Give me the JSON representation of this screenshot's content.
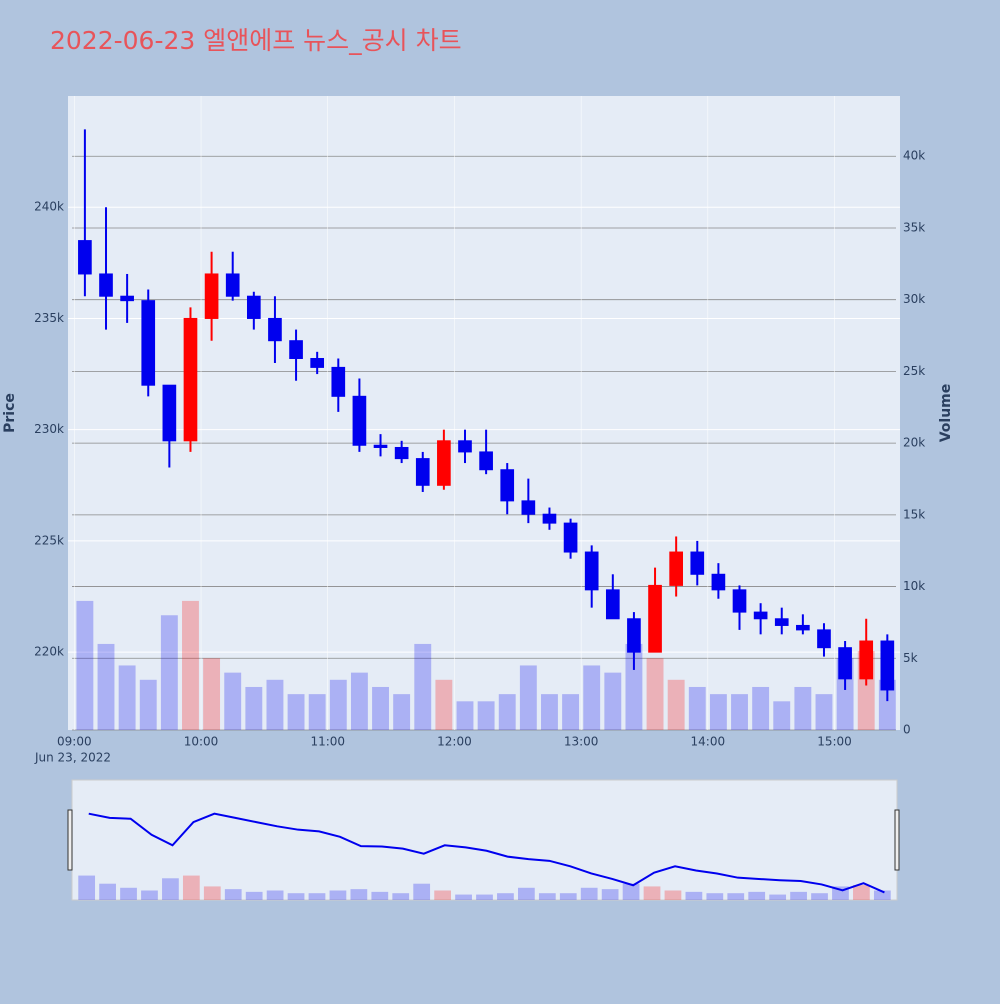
{
  "chart_data": {
    "type": "candlestick",
    "title": "2022-06-23 엘앤에프 뉴스_공시 차트",
    "title_color": "#e8545a",
    "y_title": "Price",
    "y2_title": "Volume",
    "x_date_label": "Jun 23, 2022",
    "up_color": "#ff0000",
    "down_color": "#0000ee",
    "x": [
      "2022-06-23 09:00",
      "2022-06-23 09:10",
      "2022-06-23 09:20",
      "2022-06-23 09:30",
      "2022-06-23 09:40",
      "2022-06-23 09:50",
      "2022-06-23 10:00",
      "2022-06-23 10:10",
      "2022-06-23 10:20",
      "2022-06-23 10:30",
      "2022-06-23 10:40",
      "2022-06-23 10:50",
      "2022-06-23 11:00",
      "2022-06-23 11:10",
      "2022-06-23 11:20",
      "2022-06-23 11:30",
      "2022-06-23 11:40",
      "2022-06-23 11:50",
      "2022-06-23 12:00",
      "2022-06-23 12:10",
      "2022-06-23 12:20",
      "2022-06-23 12:30",
      "2022-06-23 12:40",
      "2022-06-23 12:50",
      "2022-06-23 13:00",
      "2022-06-23 13:10",
      "2022-06-23 13:20",
      "2022-06-23 13:30",
      "2022-06-23 13:40",
      "2022-06-23 13:50",
      "2022-06-23 14:00",
      "2022-06-23 14:10",
      "2022-06-23 14:20",
      "2022-06-23 14:30",
      "2022-06-23 14:40",
      "2022-06-23 14:50",
      "2022-06-23 15:00",
      "2022-06-23 15:10",
      "2022-06-23 15:20"
    ],
    "open": [
      238500,
      237000,
      236000,
      235800,
      232000,
      229500,
      235000,
      237000,
      236000,
      235000,
      234000,
      233200,
      232800,
      231500,
      229300,
      229200,
      228700,
      227500,
      229500,
      229000,
      228200,
      226800,
      226200,
      225800,
      224500,
      222800,
      221500,
      220000,
      223000,
      224500,
      223500,
      222800,
      221800,
      221500,
      221200,
      221000,
      220200,
      218800,
      220500
    ],
    "high": [
      243500,
      240000,
      237000,
      236300,
      232000,
      235500,
      238000,
      238000,
      236200,
      236000,
      234500,
      233500,
      233200,
      232300,
      229800,
      229500,
      229000,
      230000,
      230000,
      230000,
      228500,
      227800,
      226500,
      226000,
      224800,
      223500,
      221800,
      223800,
      225200,
      225000,
      224000,
      223000,
      222200,
      222000,
      221700,
      221300,
      220500,
      221500,
      220800
    ],
    "low": [
      236000,
      234500,
      234800,
      231500,
      228300,
      229000,
      234000,
      235800,
      234500,
      233000,
      232200,
      232500,
      230800,
      229000,
      228800,
      228500,
      227200,
      227300,
      228500,
      228000,
      226200,
      225800,
      225500,
      224200,
      222000,
      221500,
      219200,
      220000,
      222500,
      223000,
      222400,
      221000,
      220800,
      220800,
      220800,
      219800,
      218300,
      218500,
      217800
    ],
    "close": [
      237000,
      236000,
      235800,
      232000,
      229500,
      235000,
      237000,
      236000,
      235000,
      234000,
      233200,
      232800,
      231500,
      229300,
      229200,
      228700,
      227500,
      229500,
      229000,
      228200,
      226800,
      226200,
      225800,
      224500,
      222800,
      221500,
      220000,
      223000,
      224500,
      223500,
      222800,
      221800,
      221500,
      221200,
      221000,
      220200,
      218800,
      220500,
      218300
    ],
    "volume": [
      9000,
      6000,
      4500,
      3500,
      8000,
      9000,
      5000,
      4000,
      3000,
      3500,
      2500,
      2500,
      3500,
      4000,
      3000,
      2500,
      6000,
      3500,
      2000,
      2000,
      2500,
      4500,
      2500,
      2500,
      4500,
      4000,
      6000,
      5000,
      3500,
      3000,
      2500,
      2500,
      3000,
      2000,
      3000,
      2500,
      5000,
      5500,
      3500
    ],
    "xlim": [
      "2022-06-23 08:57",
      "2022-06-23 15:31"
    ],
    "xticks": [
      {
        "value": "2022-06-23 09:00",
        "label": "09:00"
      },
      {
        "value": "2022-06-23 10:00",
        "label": "10:00"
      },
      {
        "value": "2022-06-23 11:00",
        "label": "11:00"
      },
      {
        "value": "2022-06-23 12:00",
        "label": "12:00"
      },
      {
        "value": "2022-06-23 13:00",
        "label": "13:00"
      },
      {
        "value": "2022-06-23 14:00",
        "label": "14:00"
      },
      {
        "value": "2022-06-23 15:00",
        "label": "15:00"
      }
    ],
    "ylim": [
      216500,
      245000
    ],
    "yticks": [
      {
        "value": 220000,
        "label": "220k"
      },
      {
        "value": 225000,
        "label": "225k"
      },
      {
        "value": 230000,
        "label": "230k"
      },
      {
        "value": 235000,
        "label": "235k"
      },
      {
        "value": 240000,
        "label": "240k"
      }
    ],
    "y2lim": [
      0,
      44200
    ],
    "y2ticks": [
      0,
      {
        "value": 5000,
        "label": "5k"
      },
      {
        "value": 10000,
        "label": "10k"
      },
      {
        "value": 15000,
        "label": "15k"
      },
      {
        "value": 20000,
        "label": "20k"
      },
      {
        "value": 25000,
        "label": "25k"
      },
      {
        "value": 30000,
        "label": "30k"
      },
      {
        "value": 35000,
        "label": "35k"
      },
      {
        "value": 40000,
        "label": "40k"
      }
    ],
    "grid": true,
    "rangeslider": true
  }
}
